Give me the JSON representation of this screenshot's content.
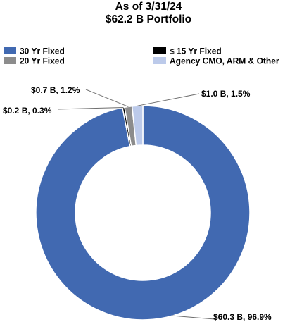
{
  "chart_data": {
    "type": "pie",
    "title": "As of 3/31/24",
    "subtitle": "$62.2 B Portfolio",
    "donut": true,
    "legend_position": "top",
    "series": [
      {
        "name": "30 Yr Fixed",
        "value": 60.3,
        "percent": 96.9,
        "label": "$60.3 B, 96.9%",
        "color": "#4169b1"
      },
      {
        "name": "≤ 15 Yr Fixed",
        "value": 0.2,
        "percent": 0.3,
        "label": "$0.2 B, 0.3%",
        "color": "#000000"
      },
      {
        "name": "20 Yr Fixed",
        "value": 0.7,
        "percent": 1.2,
        "label": "$0.7 B, 1.2%",
        "color": "#8c8c8c"
      },
      {
        "name": "Agency CMO, ARM & Other",
        "value": 1.0,
        "percent": 1.5,
        "label": "$1.0 B, 1.5%",
        "color": "#bccaea"
      }
    ],
    "legend_order": [
      0,
      1,
      2,
      3
    ]
  }
}
